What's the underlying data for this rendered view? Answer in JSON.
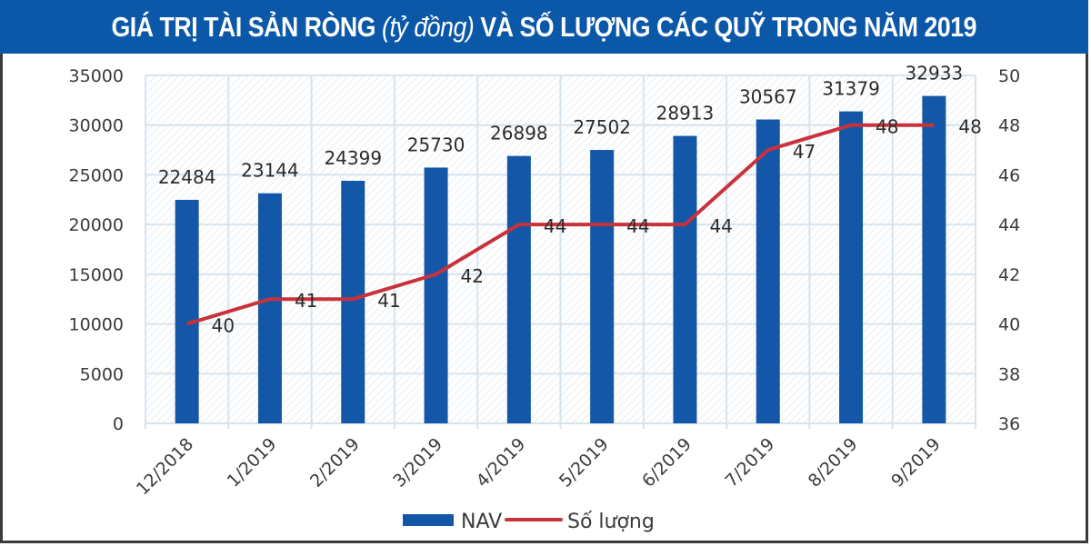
{
  "title": {
    "part1": "GIÁ TRỊ TÀI SẢN RÒNG ",
    "part2_italic": "(tỷ đồng)",
    "part3": " VÀ SỐ LƯỢNG CÁC QUỸ TRONG NĂM 2019"
  },
  "colors": {
    "title_bg": "#0b58a8",
    "bar": "#1457a8",
    "line": "#c8323a",
    "grid": "#d6e4ee"
  },
  "legend": {
    "nav_label": "NAV",
    "count_label": "Số lượng"
  },
  "chart_data": {
    "type": "bar+line",
    "title": "GIÁ TRỊ TÀI SẢN RÒNG (tỷ đồng) VÀ SỐ LƯỢNG CÁC QUỸ TRONG NĂM 2019",
    "categories": [
      "12/2018",
      "1/2019",
      "2/2019",
      "3/2019",
      "4/2019",
      "5/2019",
      "6/2019",
      "7/2019",
      "8/2019",
      "9/2019"
    ],
    "series": [
      {
        "name": "NAV",
        "type": "bar",
        "axis": "left",
        "values": [
          22484,
          23144,
          24399,
          25730,
          26898,
          27502,
          28913,
          30567,
          31379,
          32933
        ]
      },
      {
        "name": "Số lượng",
        "type": "line",
        "axis": "right",
        "values": [
          40,
          41,
          41,
          42,
          44,
          44,
          44,
          47,
          48,
          48
        ]
      }
    ],
    "left_axis": {
      "ylim": [
        0,
        35000
      ],
      "ticks": [
        "0",
        "5000",
        "10000",
        "15000",
        "20000",
        "25000",
        "30000",
        "35000"
      ]
    },
    "right_axis": {
      "ylim": [
        36,
        50
      ],
      "ticks": [
        "36",
        "38",
        "40",
        "42",
        "44",
        "46",
        "48",
        "50"
      ]
    },
    "xlabel": "",
    "ylabel": "",
    "grid": true,
    "legend_position": "bottom"
  }
}
